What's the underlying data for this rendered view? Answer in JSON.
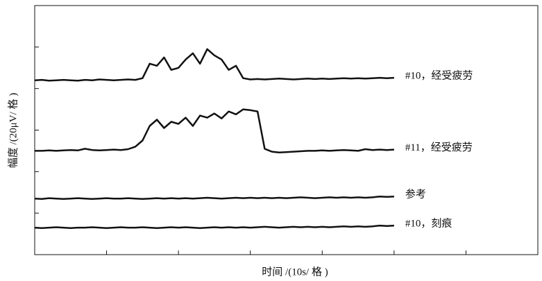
{
  "chart_data": {
    "type": "line",
    "xlabel": "时间 /(10s/ 格 )",
    "ylabel": "幅度 /(20μV/ 格 )",
    "x": [
      0,
      0.1,
      0.2,
      0.3,
      0.4,
      0.5,
      0.6,
      0.7,
      0.8,
      0.9,
      1.0,
      1.1,
      1.2,
      1.3,
      1.4,
      1.5,
      1.6,
      1.7,
      1.8,
      1.9,
      2.0,
      2.1,
      2.2,
      2.3,
      2.4,
      2.5,
      2.6,
      2.7,
      2.8,
      2.9,
      3.0,
      3.1,
      3.2,
      3.3,
      3.4,
      3.5,
      3.6,
      3.7,
      3.8,
      3.9,
      4.0,
      4.1,
      4.2,
      4.3,
      4.4,
      4.5,
      4.6,
      4.7,
      4.8,
      4.9,
      5.0
    ],
    "xlim": [
      0,
      7
    ],
    "xticks": [
      1,
      2,
      3,
      4,
      5,
      6
    ],
    "ylim": [
      0,
      6
    ],
    "yticks": [
      1,
      2,
      3,
      4,
      5
    ],
    "series": [
      {
        "name": "#10，经受疲劳",
        "color": "#111111",
        "values": [
          4.2,
          4.21,
          4.19,
          4.2,
          4.21,
          4.2,
          4.19,
          4.21,
          4.2,
          4.22,
          4.21,
          4.2,
          4.21,
          4.22,
          4.21,
          4.25,
          4.6,
          4.55,
          4.75,
          4.45,
          4.5,
          4.7,
          4.85,
          4.6,
          4.95,
          4.8,
          4.7,
          4.45,
          4.55,
          4.25,
          4.22,
          4.23,
          4.22,
          4.23,
          4.24,
          4.23,
          4.22,
          4.23,
          4.24,
          4.23,
          4.24,
          4.23,
          4.24,
          4.25,
          4.24,
          4.25,
          4.24,
          4.25,
          4.26,
          4.25,
          4.26
        ]
      },
      {
        "name": "#11，经受疲劳",
        "color": "#111111",
        "values": [
          2.5,
          2.5,
          2.51,
          2.5,
          2.51,
          2.52,
          2.51,
          2.55,
          2.52,
          2.51,
          2.52,
          2.53,
          2.52,
          2.54,
          2.6,
          2.75,
          3.1,
          3.25,
          3.05,
          3.2,
          3.15,
          3.3,
          3.1,
          3.35,
          3.3,
          3.4,
          3.28,
          3.45,
          3.38,
          3.5,
          3.48,
          3.45,
          2.55,
          2.48,
          2.46,
          2.47,
          2.48,
          2.49,
          2.5,
          2.5,
          2.51,
          2.5,
          2.51,
          2.52,
          2.51,
          2.5,
          2.54,
          2.52,
          2.53,
          2.52,
          2.53
        ]
      },
      {
        "name": "参考",
        "color": "#111111",
        "values": [
          1.35,
          1.34,
          1.36,
          1.35,
          1.34,
          1.35,
          1.36,
          1.35,
          1.34,
          1.35,
          1.36,
          1.35,
          1.35,
          1.36,
          1.35,
          1.34,
          1.35,
          1.36,
          1.35,
          1.36,
          1.35,
          1.36,
          1.35,
          1.36,
          1.37,
          1.36,
          1.35,
          1.36,
          1.37,
          1.36,
          1.37,
          1.36,
          1.37,
          1.36,
          1.37,
          1.36,
          1.37,
          1.38,
          1.37,
          1.36,
          1.37,
          1.38,
          1.37,
          1.38,
          1.37,
          1.38,
          1.37,
          1.38,
          1.4,
          1.39,
          1.4
        ]
      },
      {
        "name": "#10，刻痕",
        "color": "#111111",
        "values": [
          0.65,
          0.64,
          0.65,
          0.66,
          0.65,
          0.64,
          0.65,
          0.65,
          0.66,
          0.65,
          0.64,
          0.65,
          0.66,
          0.65,
          0.65,
          0.66,
          0.65,
          0.64,
          0.65,
          0.66,
          0.65,
          0.66,
          0.65,
          0.64,
          0.65,
          0.66,
          0.65,
          0.66,
          0.65,
          0.66,
          0.65,
          0.66,
          0.67,
          0.66,
          0.65,
          0.66,
          0.67,
          0.66,
          0.67,
          0.66,
          0.67,
          0.66,
          0.67,
          0.68,
          0.67,
          0.68,
          0.67,
          0.68,
          0.7,
          0.69,
          0.7
        ]
      }
    ]
  }
}
